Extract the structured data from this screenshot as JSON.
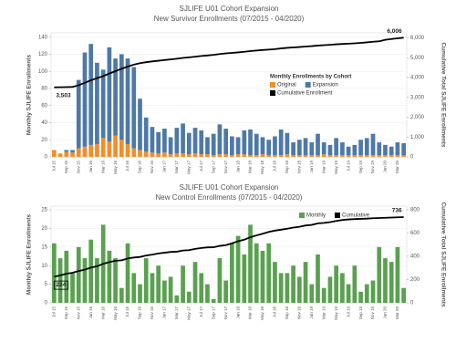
{
  "chart_data": [
    {
      "type": "bar",
      "stacked": true,
      "title": "SJLIFE U01 Cohort Expansion",
      "subtitle": "New Survivor Enrollments (07/2015 - 04/2020)",
      "y_label": "Monthly SJLIFE Enrollments",
      "y2_label": "Cumulative Total SJLIFE Enrollments",
      "legend_title": "Monthly Enrollments by Cohort",
      "legend": "center right",
      "grid": true,
      "categories": [
        "Jul 15",
        null,
        "Sep 15",
        null,
        "Nov 15",
        null,
        "Jan 16",
        null,
        "Mar 16",
        null,
        "May 16",
        null,
        "Jul 16",
        null,
        "Sep 16",
        null,
        "Nov 16",
        null,
        "Jan 17",
        null,
        "Mar 17",
        null,
        "May 17",
        null,
        "Jul 17",
        null,
        "Sep 17",
        null,
        "Nov 17",
        null,
        "Jan 18",
        null,
        "Mar 18",
        null,
        "May 18",
        null,
        "Jul 18",
        null,
        "Sep 18",
        null,
        "Nov 18",
        null,
        "Jan 19",
        null,
        "Mar 19",
        null,
        "May 19",
        null,
        "Jul 19",
        null,
        "Sep 19",
        null,
        "Nov 19",
        null,
        "Jan 20",
        null,
        "Mar 20",
        null
      ],
      "ylim": [
        0,
        145
      ],
      "yticks": [
        0,
        20,
        40,
        60,
        80,
        100,
        120,
        140
      ],
      "y2lim": [
        0,
        6250
      ],
      "y2ticks": [
        0,
        {
          "value": 1000,
          "label": "1,000"
        },
        {
          "value": 2000,
          "label": "2,000"
        },
        {
          "value": 3000,
          "label": "3,000"
        },
        {
          "value": 4000,
          "label": "4,000"
        },
        {
          "value": 5000,
          "label": "5,000"
        },
        {
          "value": 6000,
          "label": "6,000"
        }
      ],
      "series": [
        {
          "name": "Original",
          "color": "#f28e2b",
          "values": [
            8,
            4,
            6,
            5,
            10,
            12,
            14,
            15,
            22,
            18,
            25,
            20,
            15,
            10,
            8,
            6,
            5,
            4,
            5,
            3,
            4,
            4,
            3,
            4,
            3,
            3,
            2,
            3,
            3,
            2,
            3,
            3,
            2,
            2,
            3,
            2,
            2,
            2,
            3,
            2,
            2,
            2,
            2,
            2,
            3,
            2,
            2,
            2,
            2,
            2,
            2,
            2,
            2,
            2,
            2,
            2,
            2,
            2
          ]
        },
        {
          "name": "Expansion",
          "color": "#4e79a7",
          "values": [
            0,
            0,
            2,
            3,
            80,
            110,
            118,
            95,
            80,
            110,
            90,
            100,
            100,
            95,
            60,
            40,
            30,
            25,
            28,
            20,
            30,
            35,
            25,
            30,
            28,
            20,
            25,
            35,
            30,
            22,
            20,
            28,
            30,
            25,
            20,
            18,
            22,
            30,
            25,
            15,
            18,
            20,
            15,
            25,
            14,
            12,
            20,
            15,
            10,
            12,
            18,
            20,
            25,
            15,
            12,
            10,
            15,
            14
          ]
        },
        {
          "name": "Cumulative Enrollment",
          "color": "#000000",
          "type": "line",
          "axis": "y2",
          "data_labels": "ends",
          "values": [
            3503,
            3511,
            3517,
            3525,
            3610,
            3730,
            3860,
            3970,
            4070,
            4200,
            4320,
            4440,
            4550,
            4650,
            4720,
            4770,
            4810,
            4845,
            4880,
            4910,
            4945,
            4985,
            5015,
            5050,
            5085,
            5110,
            5140,
            5180,
            5215,
            5240,
            5265,
            5295,
            5330,
            5360,
            5385,
            5405,
            5430,
            5465,
            5495,
            5515,
            5535,
            5560,
            5580,
            5610,
            5630,
            5648,
            5672,
            5690,
            5705,
            5722,
            5745,
            5770,
            5800,
            5825,
            5900,
            5940,
            5975,
            6006
          ],
          "value_labels": [
            "3,503",
            null,
            null,
            null,
            null,
            null,
            null,
            null,
            null,
            null,
            null,
            null,
            null,
            null,
            null,
            null,
            null,
            null,
            null,
            null,
            null,
            null,
            null,
            null,
            null,
            null,
            null,
            null,
            null,
            null,
            null,
            null,
            null,
            null,
            null,
            null,
            null,
            null,
            null,
            null,
            null,
            null,
            null,
            null,
            null,
            null,
            null,
            null,
            null,
            null,
            null,
            null,
            null,
            null,
            null,
            null,
            null,
            "6,006"
          ]
        }
      ]
    },
    {
      "type": "bar",
      "title": "SJLIFE U01 Cohort Expansion",
      "subtitle": "New Control Enrollments (07/2015 - 04/2020)",
      "y_label": "Monthly SJLIFE Enrollments",
      "y2_label": "Cumulative Total SJLIFE Enrollments",
      "legend": "top right",
      "grid": true,
      "categories": [
        "Jul 15",
        null,
        "Sep 15",
        null,
        "Nov 15",
        null,
        "Jan 16",
        null,
        "Mar 16",
        null,
        "May 16",
        null,
        "Jul 16",
        null,
        "Sep 16",
        null,
        "Nov 16",
        null,
        "Jan 17",
        null,
        "Mar 17",
        null,
        "May 17",
        null,
        "Jul 17",
        null,
        "Sep 17",
        null,
        "Nov 17",
        null,
        "Jan 18",
        null,
        "Mar 18",
        null,
        "May 18",
        null,
        "Jul 18",
        null,
        "Sep 18",
        null,
        "Nov 18",
        null,
        "Jan 19",
        null,
        "Mar 19",
        null,
        "May 19",
        null,
        "Jul 19",
        null,
        "Sep 19",
        null,
        "Nov 19",
        null,
        "Jan 20",
        null,
        "Mar 20",
        null
      ],
      "ylim": [
        0,
        26
      ],
      "yticks": [
        0,
        5,
        10,
        15,
        20,
        25
      ],
      "y2lim": [
        0,
        830
      ],
      "y2ticks": [
        0,
        200,
        400,
        600,
        800
      ],
      "series": [
        {
          "name": "Monthly",
          "color": "#59a14f",
          "values": [
            16,
            12,
            14,
            8,
            15,
            12,
            17,
            12,
            21,
            14,
            12,
            4,
            16,
            8,
            5,
            12,
            8,
            10,
            6,
            7,
            2,
            10,
            3,
            11,
            8,
            5,
            1,
            12,
            6,
            16,
            18,
            13,
            21,
            16,
            14,
            16,
            11,
            8,
            8,
            10,
            7,
            11,
            5,
            13,
            4,
            7,
            10,
            8,
            5,
            10,
            3,
            5,
            6,
            15,
            12,
            11,
            15,
            4
          ]
        },
        {
          "name": "Cumulative",
          "color": "#000000",
          "type": "line",
          "axis": "y2",
          "data_labels": "ends",
          "boxed_first_label": true,
          "values": [
            224,
            236,
            250,
            258,
            273,
            285,
            302,
            314,
            335,
            349,
            361,
            365,
            381,
            389,
            394,
            406,
            414,
            424,
            430,
            437,
            439,
            449,
            452,
            463,
            471,
            476,
            477,
            489,
            495,
            511,
            529,
            542,
            563,
            579,
            593,
            609,
            620,
            628,
            636,
            646,
            653,
            664,
            669,
            682,
            686,
            693,
            703,
            711,
            716,
            719,
            721,
            723,
            726,
            728,
            730,
            732,
            734,
            736
          ]
        }
      ]
    }
  ]
}
